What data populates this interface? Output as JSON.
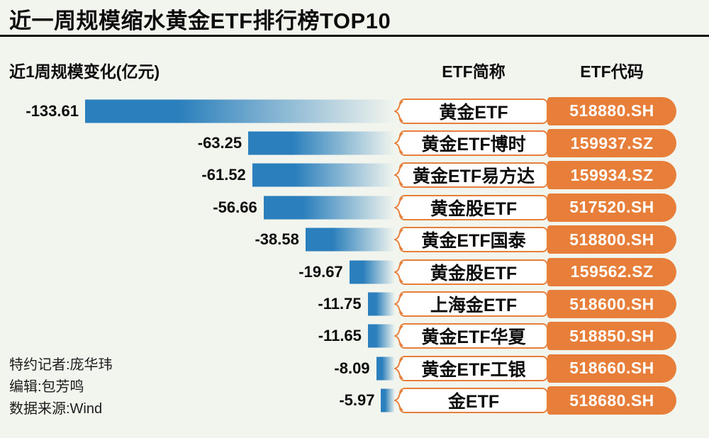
{
  "title": "近一周规模缩水黄金ETF排行榜TOP10",
  "columns": {
    "change": "近1周规模变化(亿元)",
    "name": "ETF简称",
    "code": "ETF代码"
  },
  "credits": [
    "特约记者:庞华玮",
    "编辑:包芳鸣",
    "数据来源:Wind"
  ],
  "colors": {
    "bar_blue": "#2a7fbc",
    "accent_orange": "#e77f3a",
    "background": "#f2f5ee"
  },
  "chart_data": {
    "type": "bar",
    "orientation": "horizontal",
    "title": "近一周规模缩水黄金ETF排行榜TOP10",
    "xlabel": "近1周规模变化(亿元)",
    "value_unit": "亿元",
    "xlim": [
      -140,
      0
    ],
    "rows": [
      {
        "name": "黄金ETF",
        "code": "518880.SH",
        "value": -133.61,
        "label": "-133.61"
      },
      {
        "name": "黄金ETF博时",
        "code": "159937.SZ",
        "value": -63.25,
        "label": "-63.25"
      },
      {
        "name": "黄金ETF易方达",
        "code": "159934.SZ",
        "value": -61.52,
        "label": "-61.52"
      },
      {
        "name": "黄金股ETF",
        "code": "517520.SH",
        "value": -56.66,
        "label": "-56.66"
      },
      {
        "name": "黄金ETF国泰",
        "code": "518800.SH",
        "value": -38.58,
        "label": "-38.58"
      },
      {
        "name": "黄金股ETF",
        "code": "159562.SZ",
        "value": -19.67,
        "label": "-19.67"
      },
      {
        "name": "上海金ETF",
        "code": "518600.SH",
        "value": -11.75,
        "label": "-11.75"
      },
      {
        "name": "黄金ETF华夏",
        "code": "518850.SH",
        "value": -11.65,
        "label": "-11.65"
      },
      {
        "name": "黄金ETF工银",
        "code": "518660.SH",
        "value": -8.09,
        "label": "-8.09"
      },
      {
        "name": "金ETF",
        "code": "518680.SH",
        "value": -5.97,
        "label": "-5.97"
      }
    ]
  }
}
